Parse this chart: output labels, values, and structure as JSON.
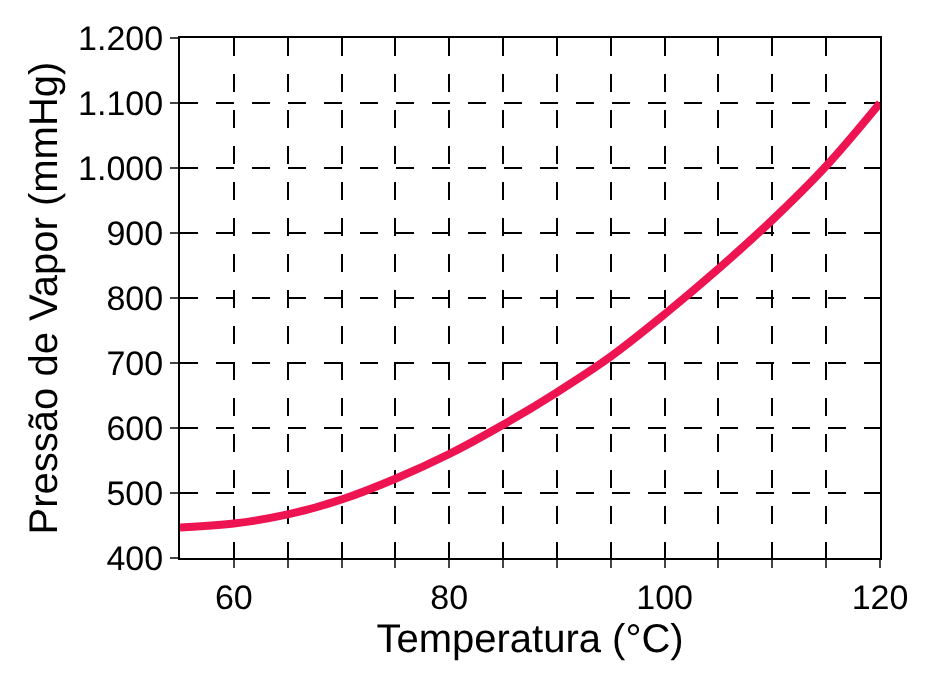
{
  "chart_data": {
    "type": "line",
    "xlabel": "Temperatura (°C)",
    "ylabel": "Pressão de Vapor (mmHg)",
    "x": [
      55,
      60,
      65,
      70,
      75,
      80,
      85,
      90,
      95,
      100,
      105,
      110,
      115,
      120
    ],
    "series": [
      {
        "color": "#ee1452",
        "values": [
          447,
          453,
          467,
          490,
          522,
          560,
          605,
          655,
          710,
          775,
          845,
          920,
          1003,
          1100
        ]
      }
    ],
    "xlim": [
      55,
      120
    ],
    "xticks": [
      60,
      {
        "value": 65,
        "label": null
      },
      {
        "value": 70,
        "label": null
      },
      {
        "value": 75,
        "label": null
      },
      80,
      {
        "value": 85,
        "label": null
      },
      {
        "value": 90,
        "label": null
      },
      {
        "value": 95,
        "label": null
      },
      100,
      {
        "value": 105,
        "label": null
      },
      {
        "value": 110,
        "label": null
      },
      {
        "value": 115,
        "label": null
      },
      120
    ],
    "ylim": [
      400,
      1200
    ],
    "yticks": [
      400,
      500,
      600,
      700,
      800,
      900,
      {
        "value": 1000,
        "label": "1.000"
      },
      {
        "value": 1100,
        "label": "1.100"
      },
      {
        "value": 1200,
        "label": "1.200"
      }
    ],
    "grid": true,
    "line_style": "solid",
    "marker": "none",
    "legend": false
  }
}
